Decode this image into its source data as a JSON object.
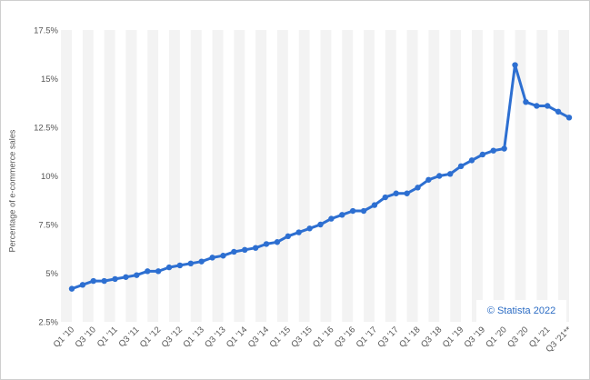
{
  "chart_data": {
    "type": "line",
    "ylabel": "Percentage of e-commerce sales",
    "ylim": [
      2.5,
      17.5
    ],
    "yticks": [
      "2.5%",
      "5%",
      "7.5%",
      "10%",
      "12.5%",
      "15%",
      "17.5%"
    ],
    "grid": "vertical bands",
    "legend": "none",
    "line_color": "#2d6fd1",
    "x": [
      "Q1 '10",
      "Q2 '10",
      "Q3 '10",
      "Q4 '10",
      "Q1 '11",
      "Q2 '11",
      "Q3 '11",
      "Q4 '11",
      "Q1 '12",
      "Q2 '12",
      "Q3 '12",
      "Q4 '12",
      "Q1 '13",
      "Q2 '13",
      "Q3 '13",
      "Q4 '13",
      "Q1 '14",
      "Q2 '14",
      "Q3 '14",
      "Q4 '14",
      "Q1 '15",
      "Q2 '15",
      "Q3 '15",
      "Q4 '15",
      "Q1 '16",
      "Q2 '16",
      "Q3 '16",
      "Q4 '16",
      "Q1 '17",
      "Q2 '17",
      "Q3 '17",
      "Q4 '17",
      "Q1 '18",
      "Q2 '18",
      "Q3 '18",
      "Q4 '18",
      "Q1 '19",
      "Q2 '19",
      "Q3 '19",
      "Q4 '19",
      "Q1 '20",
      "Q2 '20",
      "Q3 '20",
      "Q4 '20",
      "Q1 '21",
      "Q2 '21",
      "Q3 '21**"
    ],
    "xtick_labels": [
      "Q1 '10",
      "Q3 '10",
      "Q1 '11",
      "Q3 '11",
      "Q1 '12",
      "Q3 '12",
      "Q1 '13",
      "Q3 '13",
      "Q1 '14",
      "Q3 '14",
      "Q1 '15",
      "Q3 '15",
      "Q1 '16",
      "Q3 '16",
      "Q1 '17",
      "Q3 '17",
      "Q1 '18",
      "Q3 '18",
      "Q1 '19",
      "Q3 '19",
      "Q1 '20",
      "Q3 '20",
      "Q1 '21",
      "Q3 '21**"
    ],
    "values": [
      4.2,
      4.4,
      4.6,
      4.6,
      4.7,
      4.8,
      4.9,
      5.1,
      5.1,
      5.3,
      5.4,
      5.5,
      5.6,
      5.8,
      5.9,
      6.1,
      6.2,
      6.3,
      6.5,
      6.6,
      6.9,
      7.1,
      7.3,
      7.5,
      7.8,
      8.0,
      8.2,
      8.2,
      8.5,
      8.9,
      9.1,
      9.1,
      9.4,
      9.8,
      10.0,
      10.1,
      10.5,
      10.8,
      11.1,
      11.3,
      11.4,
      15.7,
      13.8,
      13.6,
      13.6,
      13.3,
      13.0
    ]
  },
  "credit": "© Statista 2022"
}
